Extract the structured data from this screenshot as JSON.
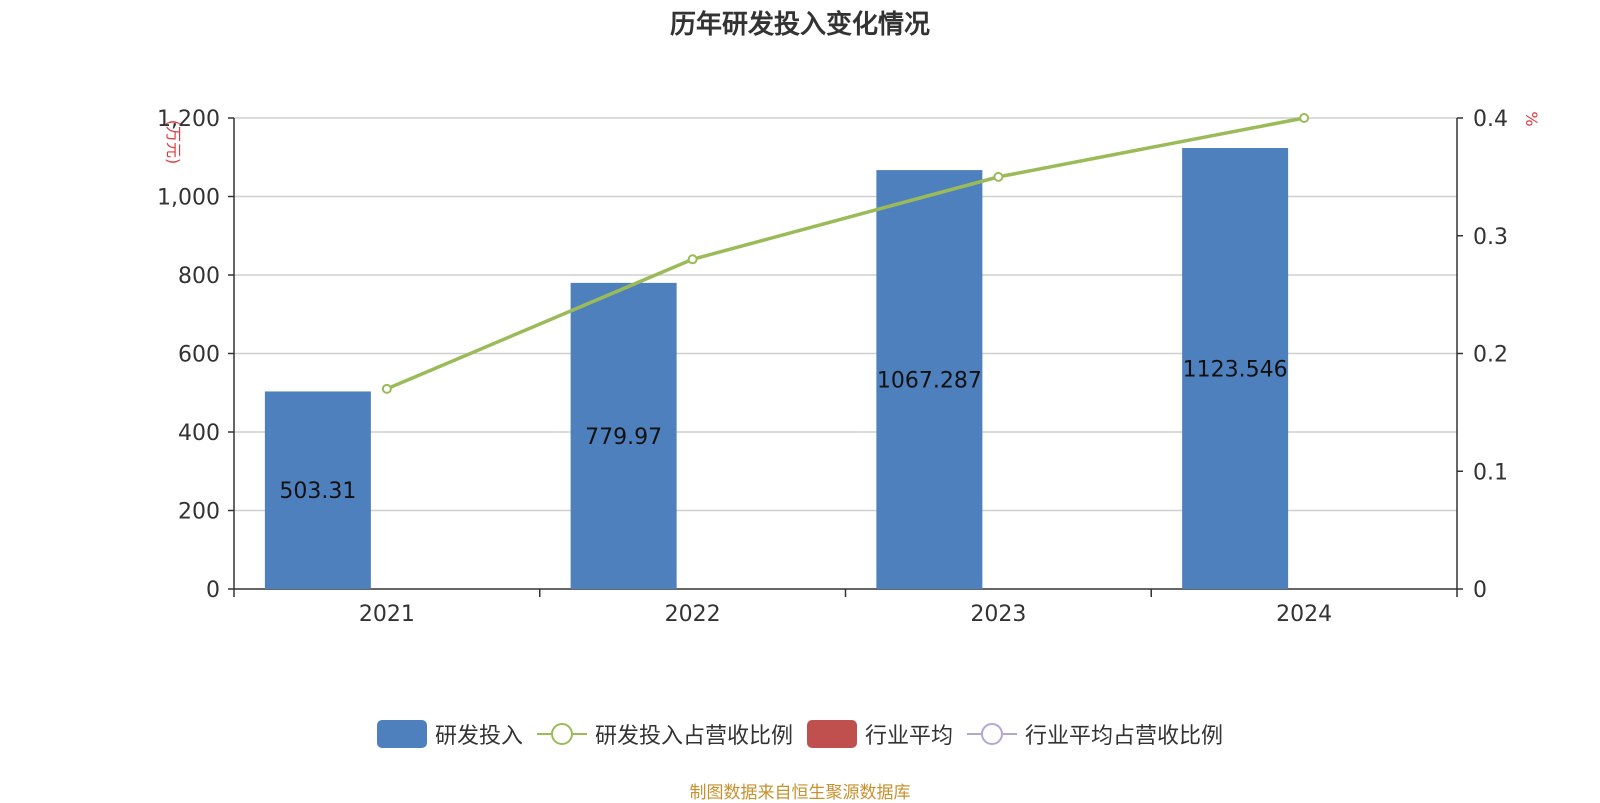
{
  "title": "历年研发投入变化情况",
  "source": "制图数据来自恒生聚源数据库",
  "colors": {
    "bar": "#4e80bd",
    "line": "#9bbb59",
    "industry_bar": "#c0504d",
    "industry_line": "#b3a7d6",
    "axis_unit": "#e0393e"
  },
  "legend": [
    {
      "label": "研发投入",
      "kind": "bar",
      "color": "#4e80bd"
    },
    {
      "label": "研发投入占营收比例",
      "kind": "line",
      "color": "#9bbb59"
    },
    {
      "label": "行业平均",
      "kind": "bar",
      "color": "#c0504d"
    },
    {
      "label": "行业平均占营收比例",
      "kind": "line",
      "color": "#b3a7d6"
    }
  ],
  "chart_data": {
    "type": "bar",
    "title": "历年研发投入变化情况",
    "categories": [
      "2021",
      "2022",
      "2023",
      "2024"
    ],
    "y_left": {
      "unit": "万元",
      "min": 0,
      "max": 1200,
      "ticks": [
        "0",
        "200",
        "400",
        "600",
        "800",
        "1,000",
        "1,200"
      ]
    },
    "y_right": {
      "unit": "%",
      "min": 0,
      "max": 0.4,
      "ticks": [
        "0",
        "0.1",
        "0.2",
        "0.3",
        "0.4"
      ]
    },
    "grid": true,
    "legend_position": "bottom",
    "series": [
      {
        "name": "研发投入",
        "type": "bar",
        "axis": "left",
        "values": [
          503.31,
          779.97,
          1067.287,
          1123.546
        ],
        "labels": [
          "503.31",
          "779.97",
          "1067.287",
          "1123.546"
        ]
      },
      {
        "name": "研发投入占营收比例",
        "type": "line",
        "axis": "right",
        "values": [
          0.17,
          0.28,
          0.35,
          0.4
        ]
      }
    ]
  }
}
